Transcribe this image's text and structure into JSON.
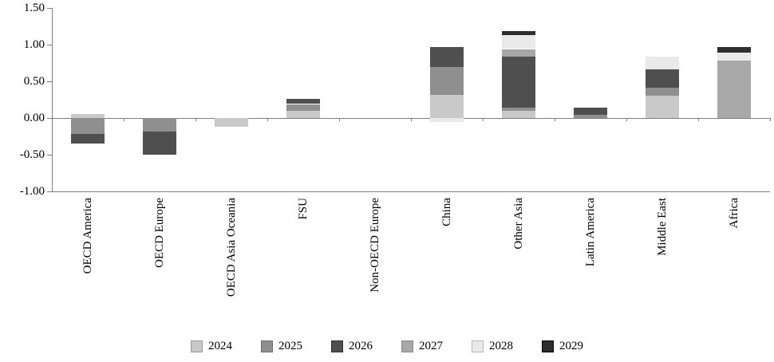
{
  "chart_data": {
    "type": "bar",
    "stacked": true,
    "title": "",
    "xlabel": "",
    "ylabel": "",
    "ylim": [
      -1.0,
      1.5
    ],
    "yticks": [
      -1.0,
      -0.5,
      0.0,
      0.5,
      1.0,
      1.5
    ],
    "ytick_labels": [
      "-1.00",
      "-0.50",
      "0.00",
      "0.50",
      "1.00",
      "1.50"
    ],
    "grid": false,
    "legend_position": "bottom",
    "categories": [
      "OECD America",
      "OECD Europe",
      "OECD Asia Oceania",
      "FSU",
      "Non-OECD Europe",
      "China",
      "Other Asia",
      "Latin America",
      "Middle East",
      "Africa"
    ],
    "series": [
      {
        "name": "2024",
        "color": "#c9c9c9",
        "swatch_border": "#9a9a9a",
        "values": [
          0.05,
          0.0,
          -0.12,
          0.1,
          0.0,
          0.32,
          0.1,
          0.0,
          0.3,
          0.0
        ]
      },
      {
        "name": "2025",
        "color": "#8f8f8f",
        "swatch_border": "#6f6f6f",
        "values": [
          -0.22,
          -0.18,
          0.0,
          0.09,
          0.0,
          0.38,
          0.04,
          0.04,
          0.11,
          0.0
        ]
      },
      {
        "name": "2026",
        "color": "#4f4f4f",
        "swatch_border": "#2f2f2f",
        "values": [
          -0.13,
          -0.32,
          0.0,
          0.07,
          0.0,
          0.27,
          0.7,
          0.1,
          0.26,
          0.0
        ]
      },
      {
        "name": "2027",
        "color": "#a8a8a8",
        "swatch_border": "#8a8a8a",
        "values": [
          0.0,
          0.0,
          0.0,
          0.0,
          0.0,
          0.0,
          0.1,
          0.0,
          0.0,
          0.78
        ]
      },
      {
        "name": "2028",
        "color": "#e9e9e9",
        "swatch_border": "#b5b5b5",
        "values": [
          0.0,
          0.0,
          0.0,
          0.0,
          0.0,
          -0.05,
          0.19,
          0.0,
          0.17,
          0.11
        ]
      },
      {
        "name": "2029",
        "color": "#2e2e2e",
        "swatch_border": "#000000",
        "values": [
          0.0,
          0.0,
          0.0,
          0.0,
          0.0,
          0.0,
          0.05,
          0.0,
          0.0,
          0.08
        ]
      }
    ]
  }
}
